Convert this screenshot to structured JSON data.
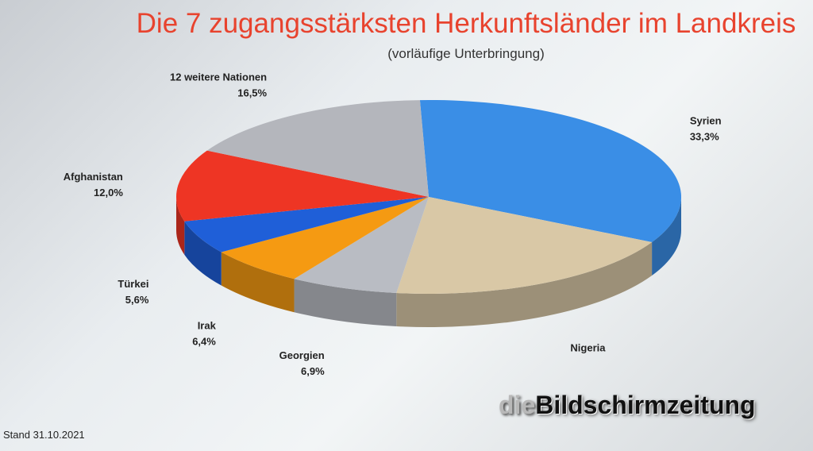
{
  "chart_data": {
    "type": "pie",
    "title": "Die 7 zugangsstärksten Herkunftsländer im Landkreis",
    "subtitle": "(vorläufige Unterbringung)",
    "slices": [
      {
        "label": "Syrien",
        "value": 33.3,
        "value_label": "33,3%",
        "color": "#3a8ee6"
      },
      {
        "label": "Nigeria",
        "value": 19.3,
        "value_label": "",
        "color": "#d9c8a6"
      },
      {
        "label": "Georgien",
        "value": 6.9,
        "value_label": "6,9%",
        "color": "#b9bcc3"
      },
      {
        "label": "Irak",
        "value": 6.4,
        "value_label": "6,4%",
        "color": "#f59a12"
      },
      {
        "label": "Türkei",
        "value": 5.6,
        "value_label": "5,6%",
        "color": "#1f5fd8"
      },
      {
        "label": "Afghanistan",
        "value": 12.0,
        "value_label": "12,0%",
        "color": "#ee3524"
      },
      {
        "label": "12 weitere Nationen",
        "value": 16.5,
        "value_label": "16,5%",
        "color": "#b4b6bc"
      }
    ]
  },
  "footer": {
    "stand": "Stand 31.10.2021"
  },
  "watermark": {
    "prefix": "die",
    "name": "Bildschirmzeitung"
  }
}
